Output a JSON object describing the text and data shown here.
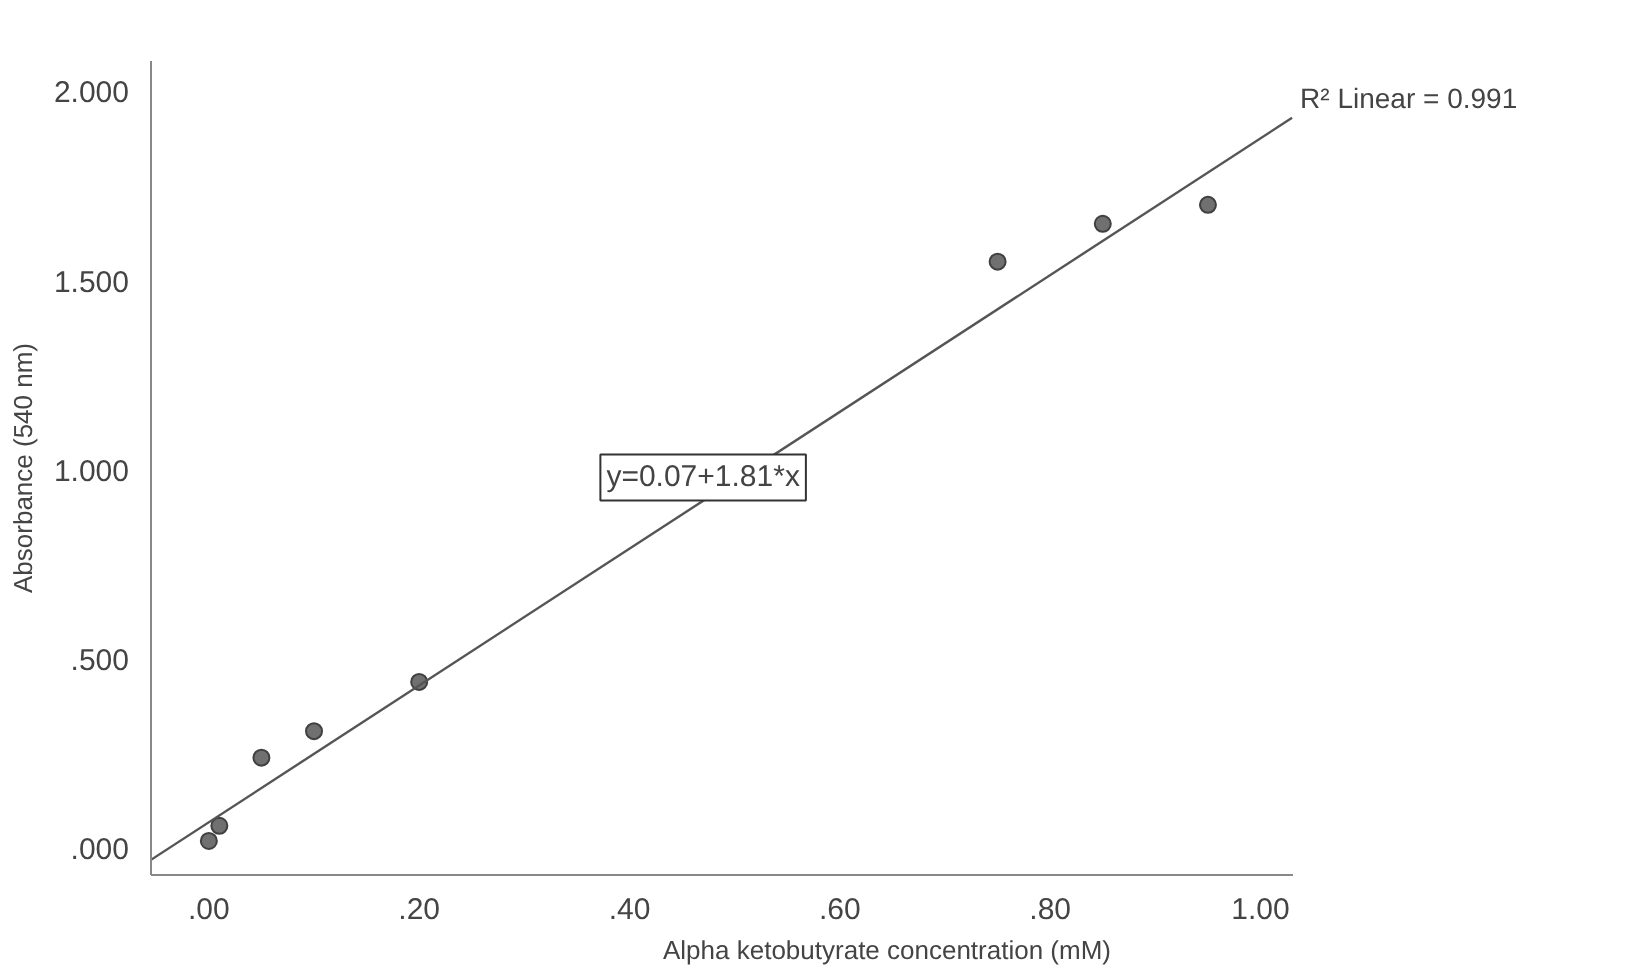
{
  "chart_data": {
    "type": "scatter",
    "xlabel": "Alpha ketobutyrate concentration (mM)",
    "ylabel": "Absorbance (540 nm)",
    "xlim": [
      -0.055,
      1.03
    ],
    "ylim": [
      -0.07,
      2.08
    ],
    "xticks": [
      {
        "value": 0,
        "label": ".00"
      },
      {
        "value": 0.2,
        "label": ".20"
      },
      {
        "value": 0.4,
        "label": ".40"
      },
      {
        "value": 0.6,
        "label": ".60"
      },
      {
        "value": 0.8,
        "label": ".80"
      },
      {
        "value": 1.0,
        "label": "1.00"
      }
    ],
    "yticks": [
      {
        "value": 0,
        "label": ".000"
      },
      {
        "value": 0.5,
        "label": ".500"
      },
      {
        "value": 1.0,
        "label": "1.000"
      },
      {
        "value": 1.5,
        "label": "1.500"
      },
      {
        "value": 2.0,
        "label": "2.000"
      }
    ],
    "grid": false,
    "series": [
      {
        "marker": "circle",
        "color": "#707070",
        "x": [
          0,
          0.01,
          0.05,
          0.1,
          0.2,
          0.75,
          0.85,
          0.95
        ],
        "values": [
          0.02,
          0.06,
          0.24,
          0.31,
          0.44,
          1.55,
          1.65,
          1.7
        ]
      },
      {
        "type": "line",
        "color": "#555555",
        "x": [
          -0.055,
          1.03
        ],
        "values": [
          -0.03,
          1.93
        ]
      }
    ],
    "annotations": [
      {
        "text": "R² Linear = 0.991",
        "x": 1.03,
        "y": 1.95
      },
      "y=0.07+1.81*x"
    ]
  }
}
